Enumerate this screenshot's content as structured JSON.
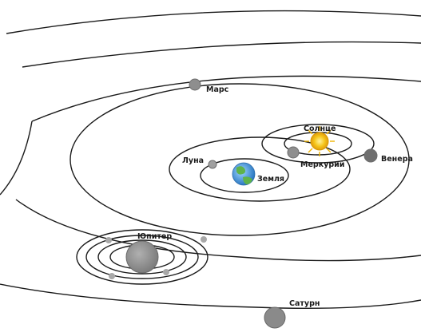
{
  "labels": {
    "mars": "Марс",
    "sun": "Солнце",
    "moon": "Луна",
    "mercury": "Меркурий",
    "venus": "Венера",
    "earth": "Земля",
    "jupiter": "Юпитер",
    "saturn": "Сатурн"
  },
  "colors": {
    "orbit": "#1a1a1a",
    "planet": "#8e8e8e",
    "sun": "#f2c21a",
    "earth_ocean": "#3a8fd6",
    "earth_land": "#5fb34a"
  }
}
